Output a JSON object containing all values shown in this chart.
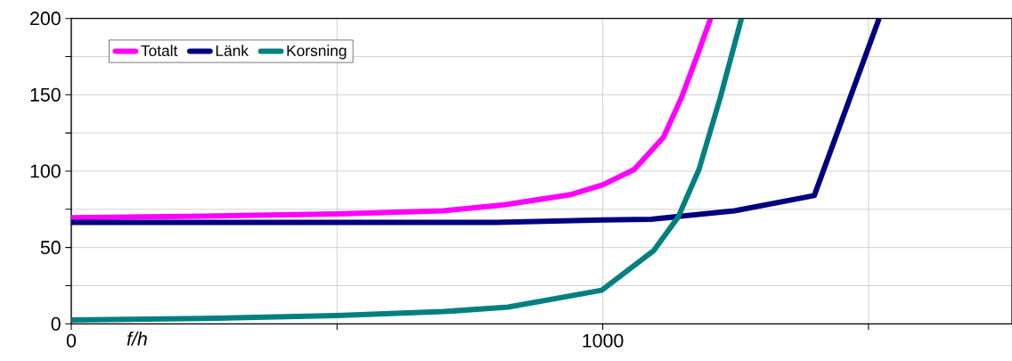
{
  "chart_data": {
    "type": "line",
    "xlabel": "f/h",
    "xlim": [
      0,
      1770
    ],
    "ylim": [
      0,
      200
    ],
    "xticks": [
      0,
      {
        "value": 500,
        "label": null
      },
      1000,
      {
        "value": 1500,
        "label": null
      }
    ],
    "yticks": [
      0,
      {
        "value": 25,
        "label": null
      },
      50,
      {
        "value": 75,
        "label": null
      },
      100,
      {
        "value": 125,
        "label": null
      },
      150,
      {
        "value": 175,
        "label": null
      },
      200
    ],
    "grid": true,
    "legend": "top left",
    "marker": "none",
    "line_style": "solid",
    "series": [
      {
        "name": "Totalt",
        "color": "#ff00ff",
        "x": [
          0,
          250,
          500,
          700,
          815,
          938,
          1000,
          1059,
          1114,
          1148,
          1175,
          1203
        ],
        "values": [
          69.5,
          70.5,
          72,
          74,
          78,
          84.5,
          91,
          101,
          122,
          148,
          173,
          200
        ]
      },
      {
        "name": "Länk",
        "color": "#000080",
        "x": [
          0,
          500,
          800,
          1000,
          1091,
          1248,
          1398,
          1520
        ],
        "values": [
          66.5,
          66.5,
          66.5,
          68,
          68.5,
          74,
          84,
          200
        ]
      },
      {
        "name": "Korsning",
        "color": "#008080",
        "x": [
          0,
          250,
          500,
          700,
          822,
          998,
          1096,
          1142,
          1181,
          1221,
          1261
        ],
        "values": [
          2.5,
          3.5,
          5.5,
          8,
          11,
          22,
          48,
          70,
          101,
          148,
          200
        ]
      }
    ]
  }
}
